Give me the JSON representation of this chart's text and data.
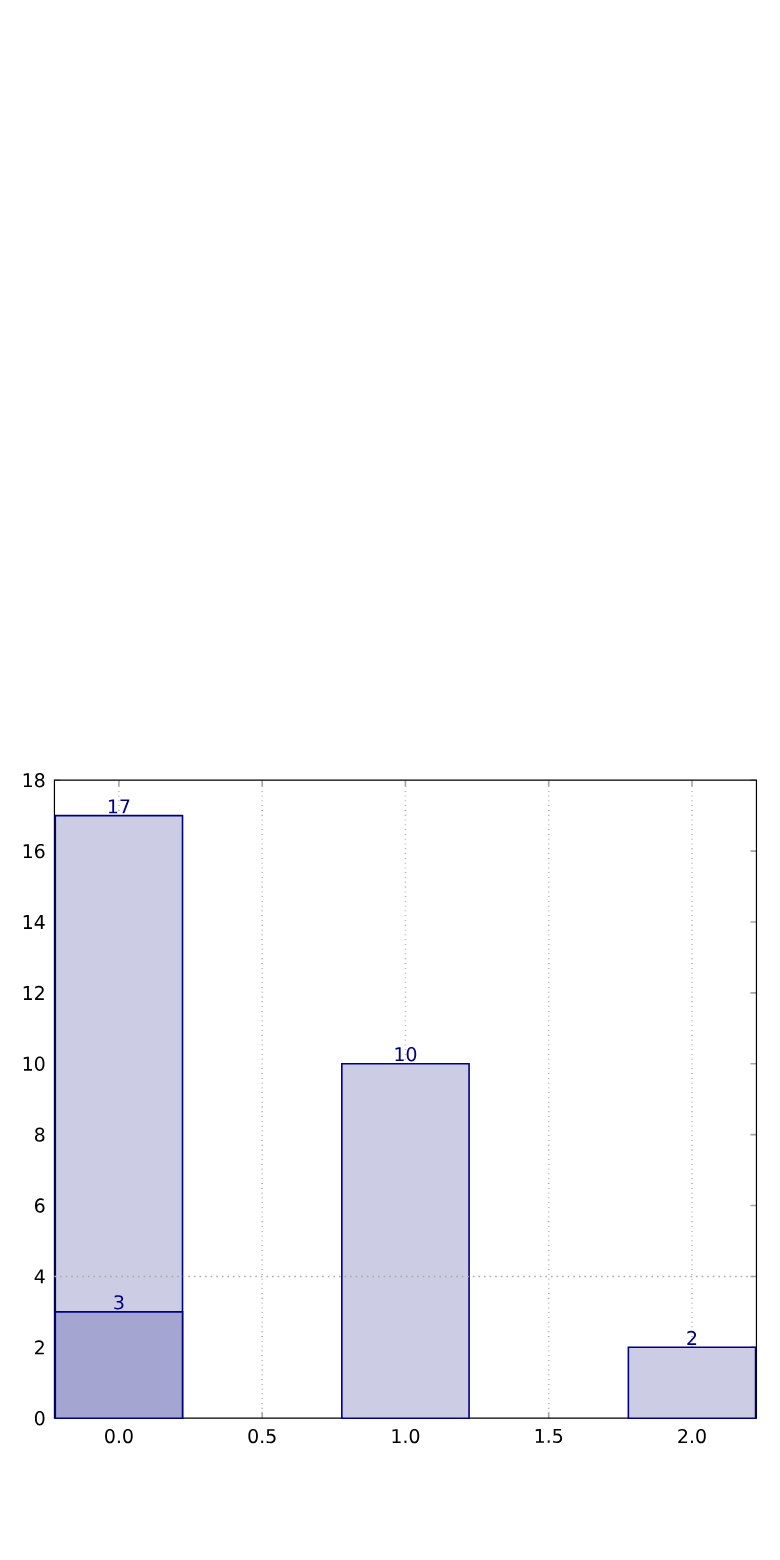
{
  "chart_data": {
    "type": "bar",
    "x": [
      0,
      1,
      2
    ],
    "series": [
      {
        "color": "#ccccE4",
        "values": [
          17,
          10,
          2
        ]
      },
      {
        "color": "#a5a5d2",
        "values": [
          3,
          null,
          null
        ]
      }
    ],
    "xlim": [
      -0.225,
      2.225
    ],
    "ylim": [
      0,
      18
    ],
    "xticks": [
      {
        "value": 0,
        "label": "0.0"
      },
      {
        "value": 0.5,
        "label": "0.5"
      },
      {
        "value": 1,
        "label": "1.0"
      },
      {
        "value": 1.5,
        "label": "1.5"
      },
      {
        "value": 2,
        "label": "2.0"
      }
    ],
    "yticks": [
      0,
      2,
      4,
      6,
      8,
      10,
      12,
      14,
      16,
      18
    ],
    "grid": "x",
    "ref_lines": [
      {
        "axis": "y",
        "value": 4,
        "color": "#aaaaaa",
        "line_style": "dotted"
      }
    ],
    "data_labels": true
  }
}
